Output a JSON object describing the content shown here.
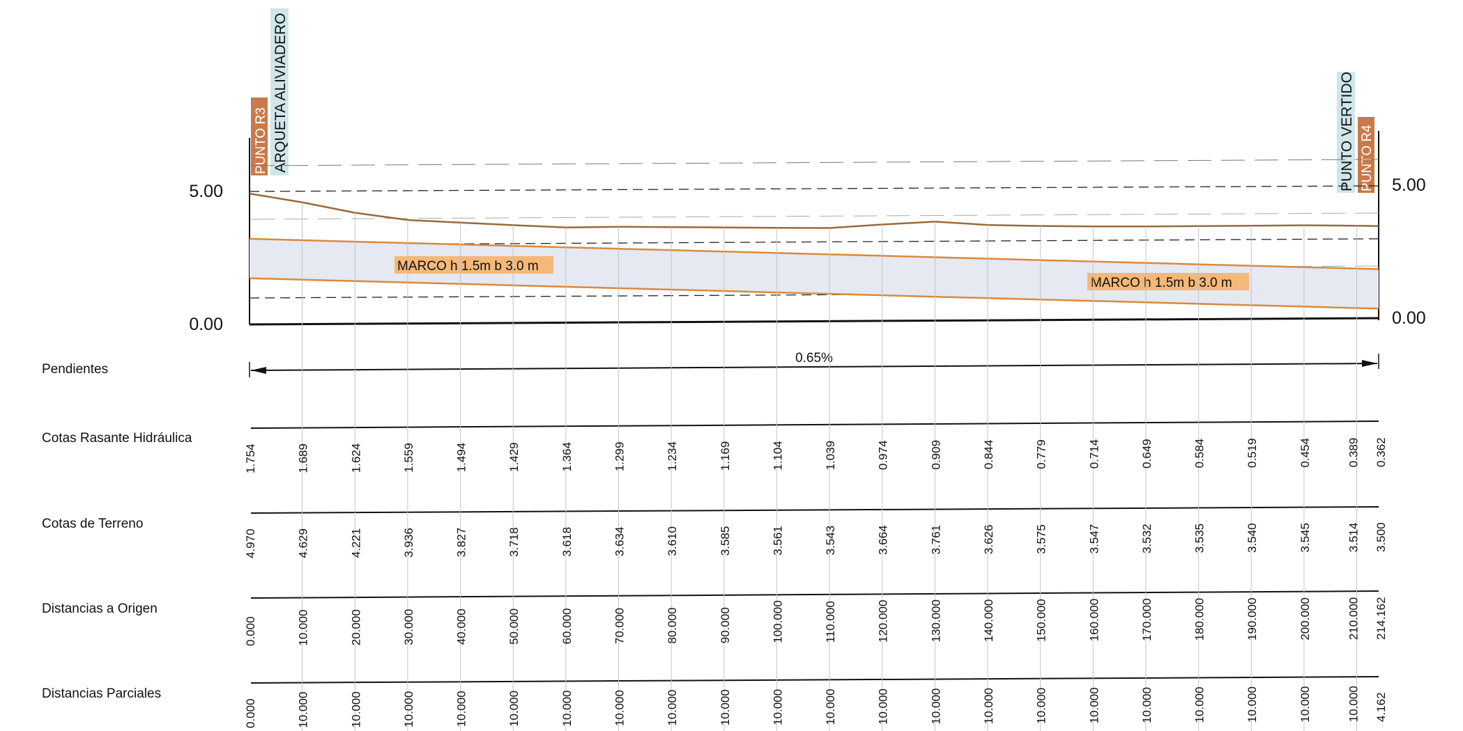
{
  "scale": {
    "left_labels": [
      "5.00",
      "0.00"
    ],
    "right_labels": [
      "5.00",
      "0.00"
    ]
  },
  "points": {
    "start_code": "PUNTO R3",
    "start_name": "ARQUETA ALIVIADERO",
    "end_code": "PUNTO R4",
    "end_name": "PUNTO VERTIDO"
  },
  "pipe_labels": {
    "first": "MARCO h 1.5m b 3.0 m",
    "second": "MARCO h 1.5m b 3.0 m"
  },
  "slope": {
    "label": "0.65%"
  },
  "table": {
    "row_slopes": "Pendientes",
    "row_hydraulic": "Cotas Rasante Hidráulica",
    "row_terrain": "Cotas de Terreno",
    "row_origin": "Distancias a Origen",
    "row_partial": "Distancias Parciales"
  },
  "chart_data": {
    "type": "line",
    "stations": [
      0,
      10,
      20,
      30,
      40,
      50,
      60,
      70,
      80,
      90,
      100,
      110,
      120,
      130,
      140,
      150,
      160,
      170,
      180,
      190,
      200,
      210,
      214.162
    ],
    "hydraulic_labels": [
      "1.754",
      "1.689",
      "1.624",
      "1.559",
      "1.494",
      "1.429",
      "1.364",
      "1.299",
      "1.234",
      "1.169",
      "1.104",
      "1.039",
      "0.974",
      "0.909",
      "0.844",
      "0.779",
      "0.714",
      "0.649",
      "0.584",
      "0.519",
      "0.454",
      "0.389",
      "0.362"
    ],
    "terrain_labels": [
      "4.970",
      "4.629",
      "4.221",
      "3.936",
      "3.827",
      "3.718",
      "3.618",
      "3.634",
      "3.610",
      "3.585",
      "3.561",
      "3.543",
      "3.664",
      "3.761",
      "3.626",
      "3.575",
      "3.547",
      "3.532",
      "3.535",
      "3.540",
      "3.545",
      "3.514",
      "3.500"
    ],
    "origin_labels": [
      "0.000",
      "10.000",
      "20.000",
      "30.000",
      "40.000",
      "50.000",
      "60.000",
      "70.000",
      "80.000",
      "90.000",
      "100.000",
      "110.000",
      "120.000",
      "130.000",
      "140.000",
      "150.000",
      "160.000",
      "170.000",
      "180.000",
      "190.000",
      "200.000",
      "210.000",
      "214.162"
    ],
    "partial_labels": [
      "0.000",
      "10.000",
      "10.000",
      "10.000",
      "10.000",
      "10.000",
      "10.000",
      "10.000",
      "10.000",
      "10.000",
      "10.000",
      "10.000",
      "10.000",
      "10.000",
      "10.000",
      "10.000",
      "10.000",
      "10.000",
      "10.000",
      "10.000",
      "10.000",
      "10.000",
      "4.162"
    ],
    "ylim": [
      0,
      5
    ],
    "pipe_height": 1.5,
    "colors": {
      "terrain": "#9a6a3a",
      "pipe": "#d98a3a",
      "fill": "#e6e8f2",
      "label_bg": "#f4b878",
      "code_bg": "#c87a4a",
      "name_bg": "#cfe6ea"
    }
  }
}
